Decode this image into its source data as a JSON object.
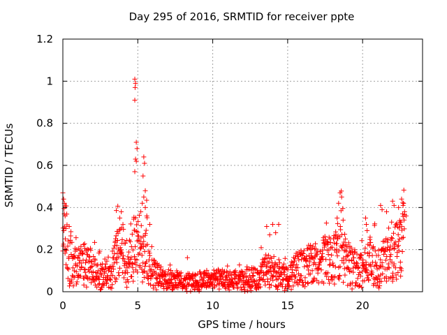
{
  "chart_data": {
    "type": "scatter",
    "title": "Day 295 of 2016, SRMTID for receiver ppte",
    "xlabel": "GPS time / hours",
    "ylabel": "SRMTID / TECUs",
    "xlim": [
      0,
      24
    ],
    "ylim": [
      0,
      1.2
    ],
    "x_ticks": [
      0,
      5,
      10,
      15,
      20
    ],
    "x_tick_labels": [
      "0",
      "5",
      "10",
      "15",
      "20"
    ],
    "y_ticks": [
      0,
      0.2,
      0.4,
      0.6,
      0.8,
      1.0,
      1.2
    ],
    "y_tick_labels": [
      "0",
      "0.2",
      "0.4",
      "0.6",
      "0.8",
      "1",
      "1.2"
    ],
    "grid": true,
    "marker": "plus",
    "color": "#ff0000",
    "series": [
      {
        "name": "ppte",
        "profile": [
          [
            0.0,
            0.18
          ],
          [
            0.1,
            0.32
          ],
          [
            0.3,
            0.2
          ],
          [
            0.6,
            0.14
          ],
          [
            1.0,
            0.12
          ],
          [
            1.5,
            0.13
          ],
          [
            2.0,
            0.1
          ],
          [
            2.5,
            0.07
          ],
          [
            3.0,
            0.09
          ],
          [
            3.4,
            0.13
          ],
          [
            3.8,
            0.2
          ],
          [
            4.2,
            0.16
          ],
          [
            4.5,
            0.15
          ],
          [
            4.8,
            0.22
          ],
          [
            5.2,
            0.2
          ],
          [
            5.6,
            0.22
          ],
          [
            6.0,
            0.1
          ],
          [
            6.5,
            0.06
          ],
          [
            7.0,
            0.06
          ],
          [
            8.0,
            0.05
          ],
          [
            9.0,
            0.05
          ],
          [
            10.0,
            0.06
          ],
          [
            11.0,
            0.05
          ],
          [
            12.0,
            0.05
          ],
          [
            13.0,
            0.06
          ],
          [
            13.5,
            0.1
          ],
          [
            14.0,
            0.1
          ],
          [
            14.5,
            0.06
          ],
          [
            15.0,
            0.07
          ],
          [
            15.5,
            0.1
          ],
          [
            16.0,
            0.12
          ],
          [
            17.0,
            0.13
          ],
          [
            18.0,
            0.16
          ],
          [
            18.5,
            0.2
          ],
          [
            19.0,
            0.14
          ],
          [
            19.5,
            0.12
          ],
          [
            20.0,
            0.1
          ],
          [
            20.5,
            0.15
          ],
          [
            21.0,
            0.1
          ],
          [
            21.5,
            0.15
          ],
          [
            22.0,
            0.2
          ],
          [
            22.5,
            0.22
          ],
          [
            22.8,
            0.28
          ]
        ],
        "peaks": [
          [
            0.0,
            0.47
          ],
          [
            0.05,
            0.44
          ],
          [
            0.1,
            0.42
          ],
          [
            0.15,
            0.36
          ],
          [
            0.2,
            0.3
          ],
          [
            3.5,
            0.24
          ],
          [
            3.6,
            0.22
          ],
          [
            3.8,
            0.35
          ],
          [
            3.9,
            0.38
          ],
          [
            3.6,
            0.16
          ],
          [
            4.8,
            1.01
          ],
          [
            4.85,
            0.99
          ],
          [
            4.82,
            0.97
          ],
          [
            4.8,
            0.91
          ],
          [
            4.9,
            0.71
          ],
          [
            4.95,
            0.68
          ],
          [
            4.85,
            0.63
          ],
          [
            4.9,
            0.62
          ],
          [
            4.8,
            0.57
          ],
          [
            5.4,
            0.64
          ],
          [
            5.45,
            0.61
          ],
          [
            5.35,
            0.55
          ],
          [
            5.5,
            0.48
          ],
          [
            5.4,
            0.45
          ],
          [
            5.3,
            0.42
          ],
          [
            5.5,
            0.4
          ],
          [
            5.2,
            0.38
          ],
          [
            5.6,
            0.36
          ],
          [
            5.8,
            0.32
          ],
          [
            13.6,
            0.31
          ],
          [
            14.0,
            0.32
          ],
          [
            14.4,
            0.32
          ],
          [
            14.2,
            0.28
          ],
          [
            13.8,
            0.27
          ],
          [
            18.5,
            0.47
          ],
          [
            18.6,
            0.45
          ],
          [
            18.4,
            0.42
          ],
          [
            18.3,
            0.35
          ],
          [
            18.7,
            0.34
          ],
          [
            20.2,
            0.35
          ],
          [
            20.25,
            0.32
          ],
          [
            20.3,
            0.29
          ],
          [
            21.2,
            0.41
          ],
          [
            21.3,
            0.39
          ],
          [
            21.6,
            0.38
          ],
          [
            22.0,
            0.43
          ],
          [
            22.1,
            0.41
          ],
          [
            22.4,
            0.4
          ],
          [
            22.6,
            0.44
          ],
          [
            22.7,
            0.41
          ],
          [
            22.8,
            0.38
          ],
          [
            22.9,
            0.36
          ],
          [
            22.5,
            0.33
          ]
        ],
        "n_background_points": 1400
      }
    ]
  }
}
